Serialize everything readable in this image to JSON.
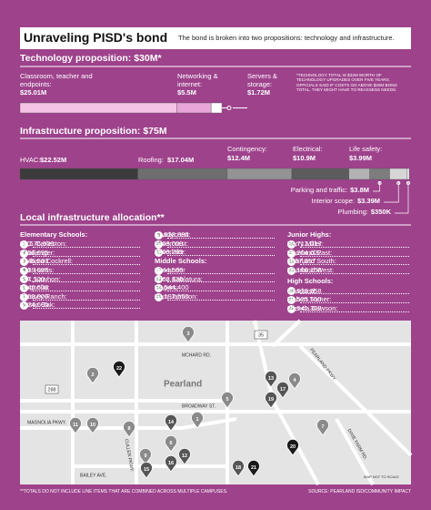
{
  "header": {
    "title": "Unraveling PISD's bond",
    "subtitle": "The bond is broken into two propositions: technology and infrastructure."
  },
  "technology": {
    "title": "Technology proposition: $30M*",
    "items": [
      {
        "label": "Classroom, teacher and endpoints:",
        "value": 25.01,
        "value_label": "$25.01M",
        "color": "#f4c3e6"
      },
      {
        "label": "Networking & internet:",
        "value": 5.5,
        "value_label": "$5.5M",
        "color": "#e9a6d8"
      },
      {
        "label": "Servers & storage:",
        "value": 1.72,
        "value_label": "$1.72M",
        "color": "#ffffff"
      }
    ],
    "note": "*TECHNOLOGY TOTAL IS $32M WORTH OF TECHNOLOGY UPGRADES OVER FIVE YEARS. OFFICIALS SAID IF COSTS GO ABOVE $30M BOND TOTAL, THEY MIGHT HAVE TO REASSESS NEEDS."
  },
  "infrastructure": {
    "title": "Infrastructure proposition: $75M",
    "items": [
      {
        "label": "HVAC:",
        "value": 22.52,
        "value_label": "$22.52M",
        "color": "#3b3b3b"
      },
      {
        "label": "Roofing:",
        "value": 17.04,
        "value_label": "$17.04M",
        "color": "#6e6e6e"
      },
      {
        "label": "Contingency:",
        "value": 12.4,
        "value_label": "$12.4M",
        "color": "#939393"
      },
      {
        "label": "Electrical:",
        "value": 10.9,
        "value_label": "$10.9M",
        "color": "#5c5c5c"
      },
      {
        "label": "Life safety:",
        "value": 3.99,
        "value_label": "$3.99M",
        "color": "#b3b3b3"
      },
      {
        "label": "Parking and traffic:",
        "value": 3.8,
        "value_label": "$3.8M",
        "color": "#7d7d7d"
      },
      {
        "label": "Interior scope:",
        "value": 3.39,
        "value_label": "$3.39M",
        "color": "#d6d6d6"
      },
      {
        "label": "Plumbing:",
        "value": 0.35,
        "value_label": "$350K",
        "color": "#ffffff"
      }
    ]
  },
  "allocation": {
    "title": "Local infrastructure allocation**",
    "groups": [
      {
        "title": "Elementary Schools:",
        "items": [
          {
            "num": "1",
            "name": "H.C. Carleston:",
            "amount": "$1,676,500"
          },
          {
            "num": "2",
            "name": "Challenger:",
            "amount": "$756,695"
          },
          {
            "num": "3",
            "name": "Barbara Cockrell:",
            "amount": "$346,500"
          },
          {
            "num": "4",
            "name": "C.J. Harris:",
            "amount": "$399,695"
          },
          {
            "num": "5",
            "name": "E.A. Lawhon:",
            "amount": "$97,500"
          },
          {
            "num": "6",
            "name": "Magnolia:",
            "amount": "$346,500"
          },
          {
            "num": "7",
            "name": "Massey Ranch:",
            "amount": "$359,000"
          },
          {
            "num": "8",
            "name": "Rustic Oak:",
            "amount": "$524,695"
          },
          {
            "num": "9",
            "name": "Shadycrest:",
            "amount": "$1,838,886"
          },
          {
            "num": "10",
            "name": "Silvercrest:",
            "amount": "$463,000"
          },
          {
            "num": "11",
            "name": "Silverlake:",
            "amount": "$769,785"
          }
        ]
      },
      {
        "title": "Middle Schools:",
        "items": [
          {
            "num": "12",
            "name": "Alexander",
            "amount": "$444,590"
          },
          {
            "num": "13",
            "name": "Leon Sablatura:",
            "amount": "$962,436"
          },
          {
            "num": "14",
            "name": "Rogers:",
            "amount": "$2,544,400"
          },
          {
            "num": "15",
            "name": "Sam Jamison:",
            "amount": "$2,197,550"
          }
        ]
      },
      {
        "title": "Junior Highs:",
        "items": [
          {
            "num": "16",
            "name": "Berry Miller:",
            "amount": "$2,712,017"
          },
          {
            "num": "17",
            "name": "Pearland East:",
            "amount": "$8,204,022"
          },
          {
            "num": "18",
            "name": "Pearland South:",
            "amount": "$557,357"
          },
          {
            "num": "19",
            "name": "Pearland West:",
            "amount": "$5,166,158"
          }
        ]
      },
      {
        "title": "High Schools:",
        "items": [
          {
            "num": "20",
            "name": "Pearland:",
            "amount": "$1,933,958"
          },
          {
            "num": "21",
            "name": "Robert Turner:",
            "amount": "$1,525,550"
          },
          {
            "num": "22",
            "name": "Glenda Dawson:",
            "amount": "$1,541,302"
          }
        ]
      }
    ]
  },
  "map": {
    "labels": [
      "MCHARD RD.",
      "35",
      "PEARLAND PKWY",
      "Pearland",
      "BROADWAY ST.",
      "288",
      "MAGNOLIA PKWY.",
      "CULLEN PKWY.",
      "BAILEY AVE.",
      "DIXIE FARM RD.",
      "MAP NOT TO SCALE"
    ]
  },
  "footer": {
    "note": "**TOTALS DO NOT INCLUDE LINE ITEMS THAT ARE COMBINED ACROSS MULTIPLE CAMPUSES.",
    "source": "SOURCE: PEARLAND ISD/COMMUNITY IMPACT"
  }
}
